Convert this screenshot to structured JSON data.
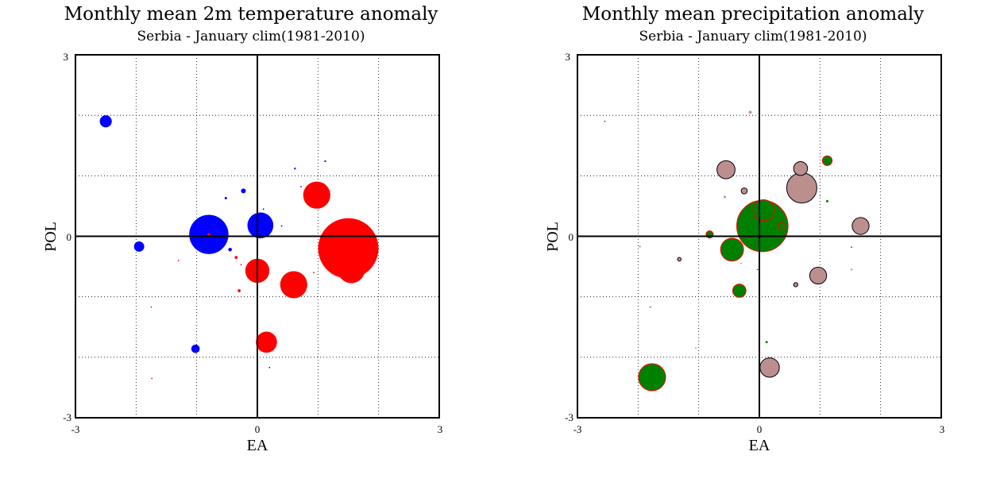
{
  "chart_data": [
    {
      "type": "scatter",
      "title": "Monthly mean 2m temperature anomaly",
      "subtitle": "Serbia - January  clim(1981-2010)",
      "xlabel": "EA",
      "ylabel": "POL",
      "xlim": [
        -3,
        3
      ],
      "ylim": [
        -3,
        3
      ],
      "grid": true,
      "tick_labels": {
        "x_min": "-3",
        "x_max": "3",
        "y_min": "-3",
        "y_max": "3",
        "x_zero": "0",
        "y_zero": "0"
      },
      "series": [
        {
          "color": "#0000ff",
          "points": [
            {
              "x": -2.5,
              "y": 1.9,
              "size": 0.2
            },
            {
              "x": -1.95,
              "y": -0.17,
              "size": 0.17
            },
            {
              "x": -0.8,
              "y": 0.03,
              "size": 0.65
            },
            {
              "x": 0.05,
              "y": 0.18,
              "size": 0.43
            },
            {
              "x": -1.02,
              "y": -1.86,
              "size": 0.14
            },
            {
              "x": -0.23,
              "y": 0.75,
              "size": 0.08
            },
            {
              "x": -0.52,
              "y": 0.63,
              "size": 0.04
            },
            {
              "x": -0.45,
              "y": -0.22,
              "size": 0.06
            },
            {
              "x": 0.1,
              "y": 0.45,
              "size": 0.02
            },
            {
              "x": 0.62,
              "y": 1.12,
              "size": 0.03
            },
            {
              "x": 1.12,
              "y": 1.24,
              "size": 0.03
            },
            {
              "x": 0.2,
              "y": -2.17,
              "size": 0.015
            },
            {
              "x": 0.72,
              "y": 0.82,
              "size": 0.006
            },
            {
              "x": 0.4,
              "y": 0.17,
              "size": 0.006
            }
          ]
        },
        {
          "color": "#ff0000",
          "points": [
            {
              "x": 1.5,
              "y": -0.2,
              "size": 1.0
            },
            {
              "x": 1.55,
              "y": -0.55,
              "size": 0.45
            },
            {
              "x": 0.98,
              "y": 0.68,
              "size": 0.45
            },
            {
              "x": 0.6,
              "y": -0.8,
              "size": 0.45
            },
            {
              "x": 0.0,
              "y": -0.57,
              "size": 0.4
            },
            {
              "x": 0.15,
              "y": -1.75,
              "size": 0.35
            },
            {
              "x": -0.3,
              "y": -0.9,
              "size": 0.05
            },
            {
              "x": -0.35,
              "y": -0.35,
              "size": 0.05
            },
            {
              "x": -0.8,
              "y": 0.03,
              "size": 0.05
            },
            {
              "x": -0.27,
              "y": -0.47,
              "size": 0.015
            },
            {
              "x": -1.75,
              "y": -1.17,
              "size": 0.006
            },
            {
              "x": -1.74,
              "y": -2.35,
              "size": 0.002
            },
            {
              "x": -1.3,
              "y": -0.4,
              "size": 0.002
            },
            {
              "x": 0.93,
              "y": -0.6,
              "size": 0.002
            }
          ]
        }
      ]
    },
    {
      "type": "scatter",
      "title": "Monthly mean precipitation anomaly",
      "subtitle": "Serbia - January  clim(1981-2010)",
      "xlabel": "EA",
      "ylabel": "POL",
      "xlim": [
        -3,
        3
      ],
      "ylim": [
        -3,
        3
      ],
      "grid": true,
      "tick_labels": {
        "x_min": "-3",
        "x_max": "3",
        "y_min": "-3",
        "y_max": "3",
        "x_zero": "0",
        "y_zero": "0"
      },
      "series": [
        {
          "color": "#bc8f8f",
          "stroke": "#000000",
          "points": [
            {
              "x": -0.15,
              "y": 2.05,
              "size": 0.05
            },
            {
              "x": -0.55,
              "y": 1.1,
              "size": 0.3
            },
            {
              "x": 0.68,
              "y": 1.12,
              "size": 0.23
            },
            {
              "x": 0.7,
              "y": 0.8,
              "size": 0.5
            },
            {
              "x": -0.25,
              "y": 0.75,
              "size": 0.1
            },
            {
              "x": -0.57,
              "y": 0.65,
              "size": 0.04
            },
            {
              "x": 1.67,
              "y": 0.17,
              "size": 0.28
            },
            {
              "x": 0.97,
              "y": -0.65,
              "size": 0.28
            },
            {
              "x": 0.6,
              "y": -0.8,
              "size": 0.07
            },
            {
              "x": 0.17,
              "y": -2.17,
              "size": 0.32
            },
            {
              "x": -1.32,
              "y": -0.38,
              "size": 0.06
            },
            {
              "x": -1.97,
              "y": -0.17,
              "size": 0.03
            },
            {
              "x": -1.05,
              "y": -1.85,
              "size": 0.02
            },
            {
              "x": 1.52,
              "y": -0.55,
              "size": 0.03
            },
            {
              "x": 1.0,
              "y": 0.67,
              "size": 0.01
            },
            {
              "x": -0.3,
              "y": -0.45,
              "size": 0.01
            }
          ]
        },
        {
          "color": "#008000",
          "stroke": "#ff0000",
          "points": [
            {
              "x": 0.05,
              "y": 0.17,
              "size": 0.85
            },
            {
              "x": 0.07,
              "y": 0.43,
              "size": 0.35
            },
            {
              "x": -0.45,
              "y": -0.22,
              "size": 0.38
            },
            {
              "x": -0.33,
              "y": -0.9,
              "size": 0.22
            },
            {
              "x": -1.77,
              "y": -2.33,
              "size": 0.45
            },
            {
              "x": 1.12,
              "y": 1.25,
              "size": 0.16
            },
            {
              "x": -0.82,
              "y": 0.03,
              "size": 0.12
            },
            {
              "x": 0.37,
              "y": 0.17,
              "size": 0.12
            },
            {
              "x": 0.12,
              "y": -1.75,
              "size": 0.04
            },
            {
              "x": 1.12,
              "y": 0.58,
              "size": 0.04
            },
            {
              "x": 1.52,
              "y": -0.18,
              "size": 0.015
            },
            {
              "x": -0.03,
              "y": -0.55,
              "size": 0.008
            },
            {
              "x": -2.55,
              "y": 1.9,
              "size": 0.002
            },
            {
              "x": -1.8,
              "y": -1.17,
              "size": 0.001
            }
          ]
        }
      ]
    }
  ]
}
